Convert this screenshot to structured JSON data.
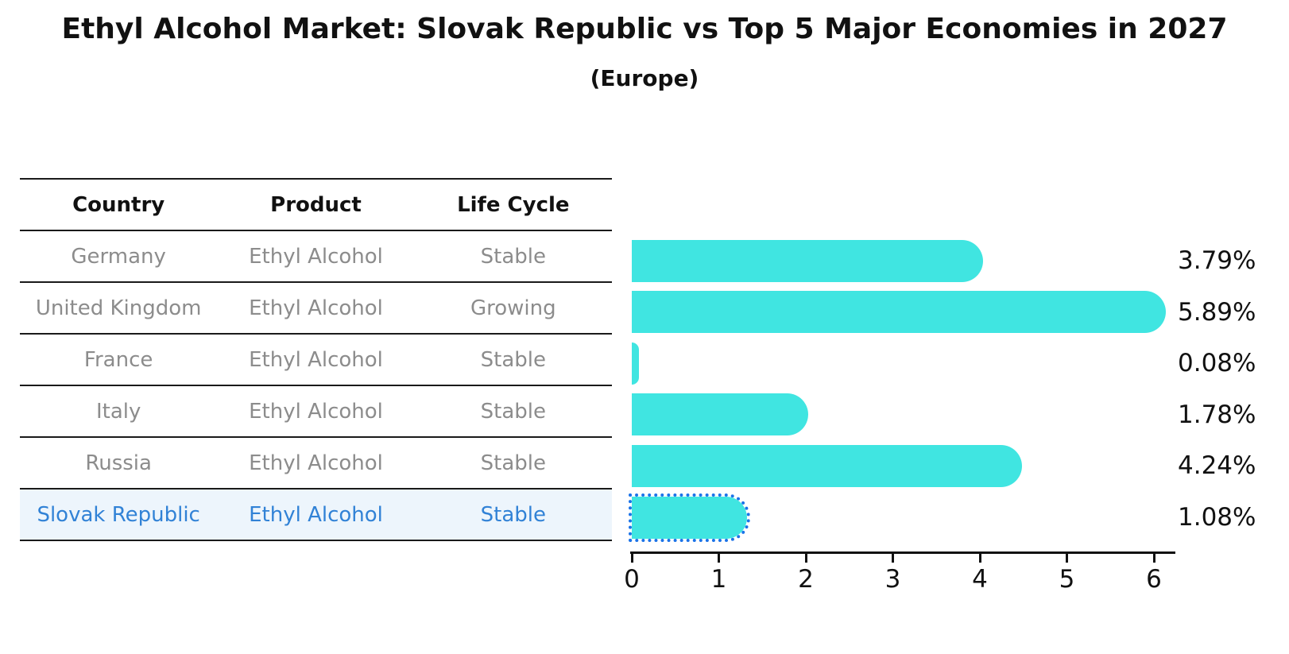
{
  "title": "Ethyl Alcohol Market: Slovak Republic vs Top 5 Major Economies in 2027",
  "subtitle": "(Europe)",
  "table": {
    "headers": [
      "Country",
      "Product",
      "Life Cycle"
    ],
    "rows": [
      {
        "country": "Germany",
        "product": "Ethyl Alcohol",
        "life_cycle": "Stable"
      },
      {
        "country": "United Kingdom",
        "product": "Ethyl Alcohol",
        "life_cycle": "Growing"
      },
      {
        "country": "France",
        "product": "Ethyl Alcohol",
        "life_cycle": "Stable"
      },
      {
        "country": "Italy",
        "product": "Ethyl Alcohol",
        "life_cycle": "Stable"
      },
      {
        "country": "Russia",
        "product": "Ethyl Alcohol",
        "life_cycle": "Stable"
      },
      {
        "country": "Slovak Republic",
        "product": "Ethyl Alcohol",
        "life_cycle": "Stable"
      }
    ]
  },
  "chart_data": {
    "type": "bar",
    "orientation": "horizontal",
    "categories": [
      "Germany",
      "United Kingdom",
      "France",
      "Italy",
      "Russia",
      "Slovak Republic"
    ],
    "values": [
      3.79,
      5.89,
      0.08,
      1.78,
      4.24,
      1.08
    ],
    "value_labels": [
      "3.79%",
      "5.89%",
      "0.08%",
      "1.78%",
      "4.24%",
      "1.08%"
    ],
    "x_ticks": [
      0,
      1,
      2,
      3,
      4,
      5,
      6
    ],
    "xlim": [
      0,
      6.2
    ],
    "grid": false,
    "legend": false,
    "highlight_index": 5,
    "bar_color": "#40e5e1",
    "highlight_color": "#1b73e8",
    "highlight_text_color": "#3182d6"
  }
}
